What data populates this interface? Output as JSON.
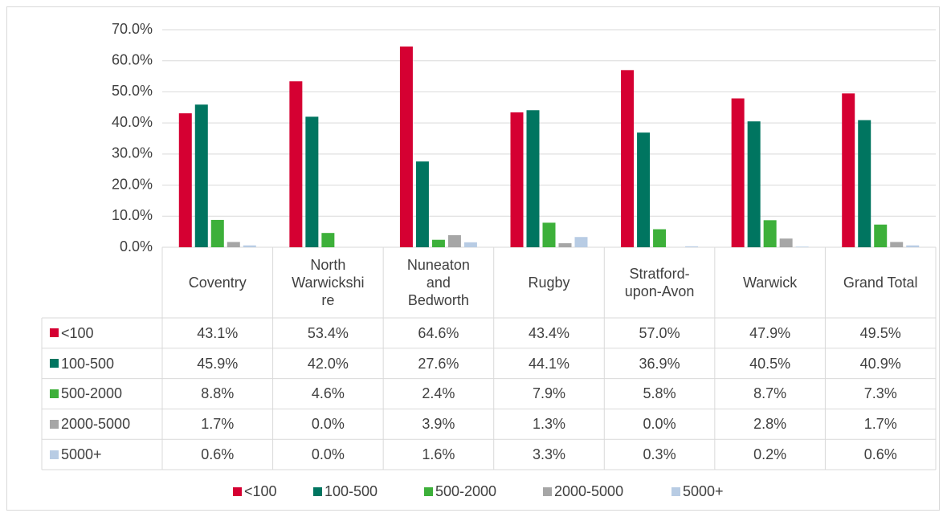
{
  "chart_data": {
    "type": "bar",
    "categories": [
      "Coventry",
      "North Warwickshire",
      "Nuneaton and Bedworth",
      "Rugby",
      "Stratford-upon-Avon",
      "Warwick",
      "Grand Total"
    ],
    "series": [
      {
        "name": "<100",
        "color": "#d50032",
        "values": [
          43.1,
          53.4,
          64.6,
          43.4,
          57.0,
          47.9,
          49.5
        ],
        "value_labels": [
          "43.1%",
          "53.4%",
          "64.6%",
          "43.4%",
          "57.0%",
          "47.9%",
          "49.5%"
        ]
      },
      {
        "name": "100-500",
        "color": "#007560",
        "values": [
          45.9,
          42.0,
          27.6,
          44.1,
          36.9,
          40.5,
          40.9
        ],
        "value_labels": [
          "45.9%",
          "42.0%",
          "27.6%",
          "44.1%",
          "36.9%",
          "40.5%",
          "40.9%"
        ]
      },
      {
        "name": "500-2000",
        "color": "#3db03a",
        "values": [
          8.8,
          4.6,
          2.4,
          7.9,
          5.8,
          8.7,
          7.3
        ],
        "value_labels": [
          "8.8%",
          "4.6%",
          "2.4%",
          "7.9%",
          "5.8%",
          "8.7%",
          "7.3%"
        ]
      },
      {
        "name": "2000-5000",
        "color": "#a6a6a6",
        "values": [
          1.7,
          0.0,
          3.9,
          1.3,
          0.0,
          2.8,
          1.7
        ],
        "value_labels": [
          "1.7%",
          "0.0%",
          "3.9%",
          "1.3%",
          "0.0%",
          "2.8%",
          "1.7%"
        ]
      },
      {
        "name": "5000+",
        "color": "#b8cce4",
        "values": [
          0.6,
          0.0,
          1.6,
          3.3,
          0.3,
          0.2,
          0.6
        ],
        "value_labels": [
          "0.6%",
          "0.0%",
          "1.6%",
          "3.3%",
          "0.3%",
          "0.2%",
          "0.6%"
        ]
      }
    ],
    "ylim": [
      0,
      70
    ],
    "yticks": [
      {
        "value": 0,
        "label": "0.0%"
      },
      {
        "value": 10,
        "label": "10.0%"
      },
      {
        "value": 20,
        "label": "20.0%"
      },
      {
        "value": 30,
        "label": "30.0%"
      },
      {
        "value": 40,
        "label": "40.0%"
      },
      {
        "value": 50,
        "label": "50.0%"
      },
      {
        "value": 60,
        "label": "60.0%"
      },
      {
        "value": 70,
        "label": "70.0%"
      }
    ],
    "grid": true,
    "legend": "bottom"
  }
}
